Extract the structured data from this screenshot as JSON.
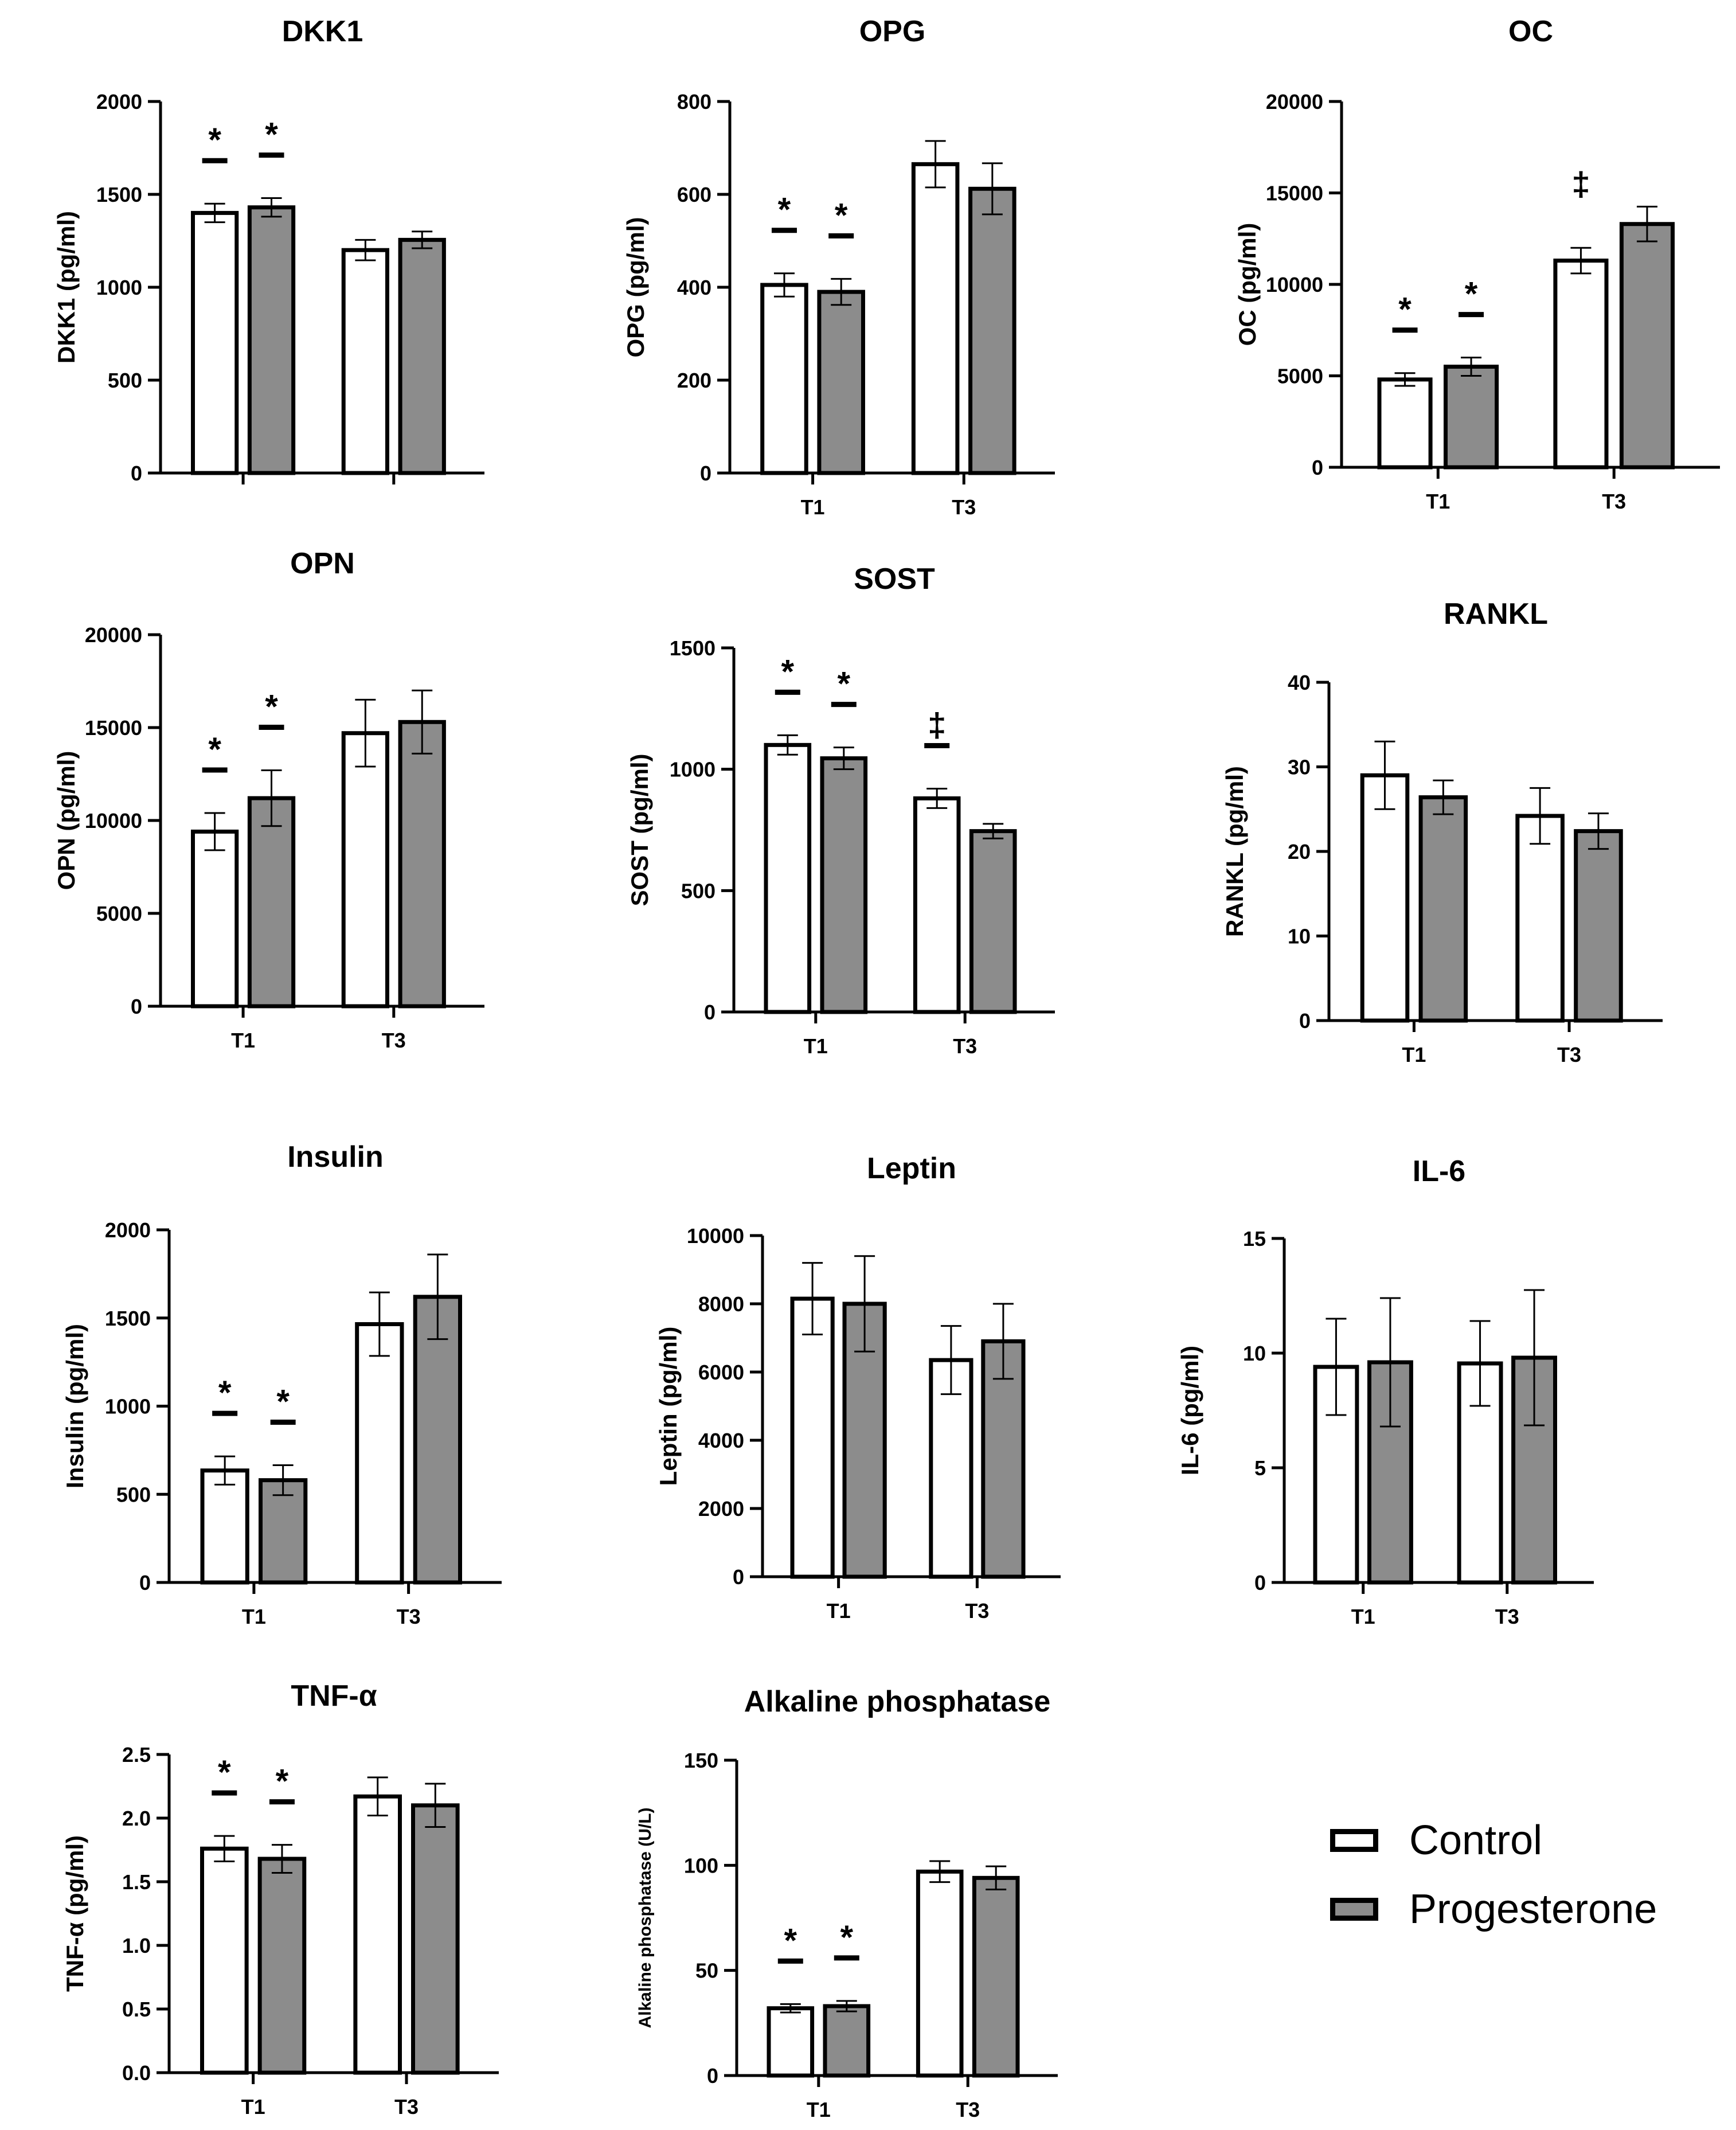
{
  "legend": {
    "control_label": "Control",
    "progesterone_label": "Progesterone",
    "control_color": "#ffffff",
    "progesterone_color": "#8c8c8c"
  },
  "chart_data": [
    {
      "id": "dkk1",
      "type": "bar",
      "title": "DKK1",
      "ylabel": "DKK1 (pg/ml)",
      "ylim": [
        0,
        2000
      ],
      "yticks": [
        "0",
        "500",
        "1000",
        "1500",
        "2000"
      ],
      "categories": [
        "",
        ""
      ],
      "series": [
        {
          "name": "Control",
          "values": [
            1400,
            1200
          ],
          "errors": [
            50,
            55
          ]
        },
        {
          "name": "Progesterone",
          "values": [
            1430,
            1255
          ],
          "errors": [
            50,
            45
          ]
        }
      ],
      "markers": [
        {
          "cat": 0,
          "series": 0,
          "symbol": "*",
          "bar": true
        },
        {
          "cat": 0,
          "series": 1,
          "symbol": "*",
          "bar": true
        }
      ]
    },
    {
      "id": "opg",
      "type": "bar",
      "title": "OPG",
      "ylabel": "OPG (pg/ml)",
      "ylim": [
        0,
        800
      ],
      "yticks": [
        "0",
        "200",
        "400",
        "600",
        "800"
      ],
      "categories": [
        "T1",
        "T3"
      ],
      "series": [
        {
          "name": "Control",
          "values": [
            405,
            665
          ],
          "errors": [
            25,
            50
          ]
        },
        {
          "name": "Progesterone",
          "values": [
            390,
            612
          ],
          "errors": [
            28,
            55
          ]
        }
      ],
      "markers": [
        {
          "cat": 0,
          "series": 0,
          "symbol": "*",
          "bar": true
        },
        {
          "cat": 0,
          "series": 1,
          "symbol": "*",
          "bar": true
        }
      ]
    },
    {
      "id": "oc",
      "type": "bar",
      "title": "OC",
      "ylabel": "OC (pg/ml)",
      "ylim": [
        0,
        20000
      ],
      "yticks": [
        "0",
        "5000",
        "10000",
        "15000",
        "20000"
      ],
      "categories": [
        "T1",
        "T3"
      ],
      "series": [
        {
          "name": "Control",
          "values": [
            4800,
            11300
          ],
          "errors": [
            350,
            700
          ]
        },
        {
          "name": "Progesterone",
          "values": [
            5500,
            13300
          ],
          "errors": [
            500,
            950
          ]
        }
      ],
      "markers": [
        {
          "cat": 0,
          "series": 0,
          "symbol": "*",
          "bar": true
        },
        {
          "cat": 0,
          "series": 1,
          "symbol": "*",
          "bar": true
        },
        {
          "cat": 1,
          "series": 0,
          "symbol": "‡",
          "bar": false
        }
      ]
    },
    {
      "id": "opn",
      "type": "bar",
      "title": "OPN",
      "ylabel": "OPN (pg/ml)",
      "ylim": [
        0,
        20000
      ],
      "yticks": [
        "0",
        "5000",
        "10000",
        "15000",
        "20000"
      ],
      "categories": [
        "T1",
        "T3"
      ],
      "series": [
        {
          "name": "Control",
          "values": [
            9400,
            14700
          ],
          "errors": [
            1000,
            1800
          ]
        },
        {
          "name": "Progesterone",
          "values": [
            11200,
            15300
          ],
          "errors": [
            1500,
            1700
          ]
        }
      ],
      "markers": [
        {
          "cat": 0,
          "series": 0,
          "symbol": "*",
          "bar": true
        },
        {
          "cat": 0,
          "series": 1,
          "symbol": "*",
          "bar": true
        }
      ]
    },
    {
      "id": "sost",
      "type": "bar",
      "title": "SOST",
      "ylabel": "SOST (pg/ml)",
      "ylim": [
        0,
        1500
      ],
      "yticks": [
        "0",
        "500",
        "1000",
        "1500"
      ],
      "categories": [
        "T1",
        "T3"
      ],
      "series": [
        {
          "name": "Control",
          "values": [
            1100,
            880
          ],
          "errors": [
            40,
            40
          ]
        },
        {
          "name": "Progesterone",
          "values": [
            1045,
            745
          ],
          "errors": [
            45,
            30
          ]
        }
      ],
      "markers": [
        {
          "cat": 0,
          "series": 0,
          "symbol": "*",
          "bar": true
        },
        {
          "cat": 0,
          "series": 1,
          "symbol": "*",
          "bar": true
        },
        {
          "cat": 1,
          "series": 0,
          "symbol": "‡",
          "bar": true
        }
      ]
    },
    {
      "id": "rankl",
      "type": "bar",
      "title": "RANKL",
      "ylabel": "RANKL (pg/ml)",
      "ylim": [
        0,
        40
      ],
      "yticks": [
        "0",
        "10",
        "20",
        "30",
        "40"
      ],
      "categories": [
        "T1",
        "T3"
      ],
      "series": [
        {
          "name": "Control",
          "values": [
            29,
            24.2
          ],
          "errors": [
            4,
            3.3
          ]
        },
        {
          "name": "Progesterone",
          "values": [
            26.4,
            22.4
          ],
          "errors": [
            2,
            2.1
          ]
        }
      ],
      "markers": []
    },
    {
      "id": "insulin",
      "type": "bar",
      "title": "Insulin",
      "ylabel": "Insulin (pg/ml)",
      "ylim": [
        0,
        2000
      ],
      "yticks": [
        "0",
        "500",
        "1000",
        "1500",
        "2000"
      ],
      "categories": [
        "T1",
        "T3"
      ],
      "series": [
        {
          "name": "Control",
          "values": [
            635,
            1465
          ],
          "errors": [
            80,
            180
          ]
        },
        {
          "name": "Progesterone",
          "values": [
            580,
            1620
          ],
          "errors": [
            85,
            240
          ]
        }
      ],
      "markers": [
        {
          "cat": 0,
          "series": 0,
          "symbol": "*",
          "bar": true
        },
        {
          "cat": 0,
          "series": 1,
          "symbol": "*",
          "bar": true
        }
      ]
    },
    {
      "id": "leptin",
      "type": "bar",
      "title": "Leptin",
      "ylabel": "Leptin (pg/ml)",
      "ylim": [
        0,
        10000
      ],
      "yticks": [
        "0",
        "2000",
        "4000",
        "6000",
        "8000",
        "10000"
      ],
      "categories": [
        "T1",
        "T3"
      ],
      "series": [
        {
          "name": "Control",
          "values": [
            8150,
            6350
          ],
          "errors": [
            1050,
            1000
          ]
        },
        {
          "name": "Progesterone",
          "values": [
            8000,
            6900
          ],
          "errors": [
            1400,
            1100
          ]
        }
      ],
      "markers": []
    },
    {
      "id": "il6",
      "type": "bar",
      "title": "IL-6",
      "ylabel": "IL-6 (pg/ml)",
      "ylim": [
        0,
        15
      ],
      "yticks": [
        "0",
        "5",
        "10",
        "15"
      ],
      "categories": [
        "T1",
        "T3"
      ],
      "series": [
        {
          "name": "Control",
          "values": [
            9.4,
            9.55
          ],
          "errors": [
            2.1,
            1.85
          ]
        },
        {
          "name": "Progesterone",
          "values": [
            9.6,
            9.8
          ],
          "errors": [
            2.8,
            2.95
          ]
        }
      ],
      "markers": []
    },
    {
      "id": "tnf",
      "type": "bar",
      "title": "TNF-α",
      "ylabel": "TNF-α (pg/ml)",
      "ylim": [
        0,
        2.5
      ],
      "yticks": [
        "0.0",
        "0.5",
        "1.0",
        "1.5",
        "2.0",
        "2.5"
      ],
      "categories": [
        "T1",
        "T3"
      ],
      "series": [
        {
          "name": "Control",
          "values": [
            1.76,
            2.17
          ],
          "errors": [
            0.1,
            0.15
          ]
        },
        {
          "name": "Progesterone",
          "values": [
            1.68,
            2.1
          ],
          "errors": [
            0.11,
            0.17
          ]
        }
      ],
      "markers": [
        {
          "cat": 0,
          "series": 0,
          "symbol": "*",
          "bar": true
        },
        {
          "cat": 0,
          "series": 1,
          "symbol": "*",
          "bar": true
        }
      ]
    },
    {
      "id": "alp",
      "type": "bar",
      "title": "Alkaline phosphatase",
      "ylabel": "Alkaline phosphatase (U/L)",
      "ylim": [
        0,
        150
      ],
      "yticks": [
        "0",
        "50",
        "100",
        "150"
      ],
      "categories": [
        "T1",
        "T3"
      ],
      "series": [
        {
          "name": "Control",
          "values": [
            32,
            97
          ],
          "errors": [
            2,
            5
          ]
        },
        {
          "name": "Progesterone",
          "values": [
            33,
            94
          ],
          "errors": [
            2.5,
            5.5
          ]
        }
      ],
      "markers": [
        {
          "cat": 0,
          "series": 0,
          "symbol": "*",
          "bar": true
        },
        {
          "cat": 0,
          "series": 1,
          "symbol": "*",
          "bar": true
        }
      ]
    }
  ]
}
